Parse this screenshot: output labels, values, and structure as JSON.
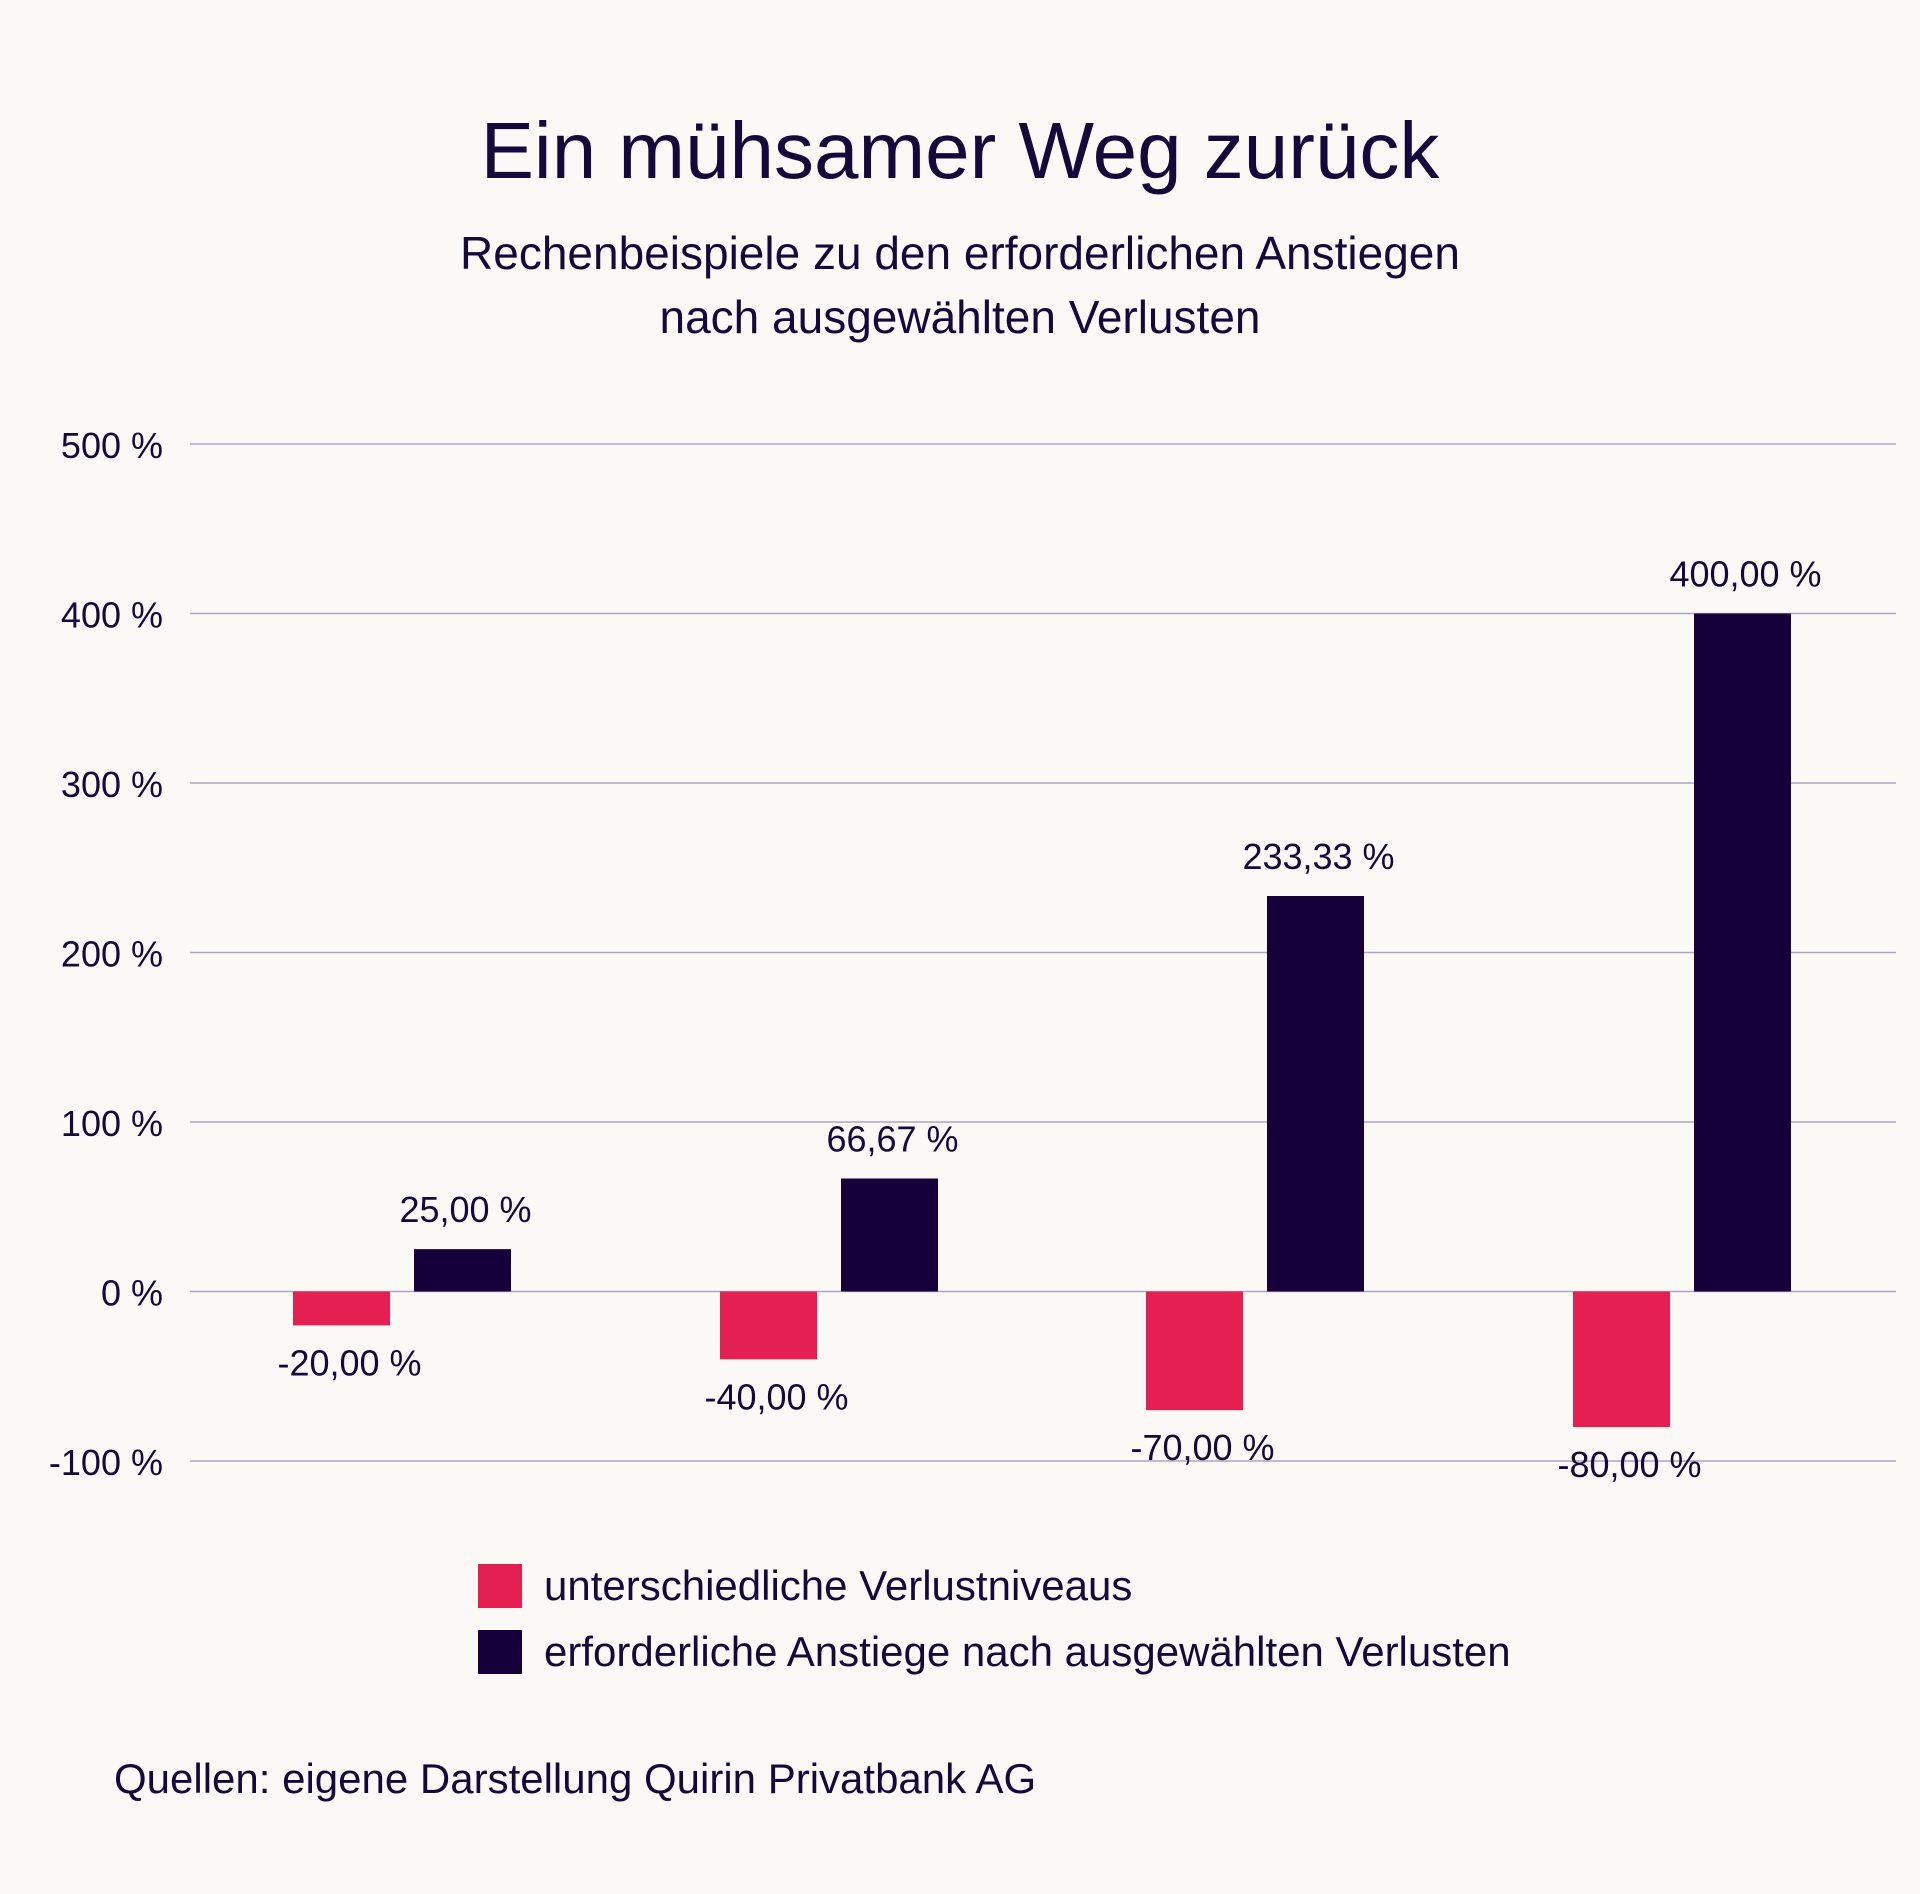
{
  "title": "Ein mühsamer Weg zurück",
  "subtitle": {
    "line1": "Rechenbeispiele zu den erforderlichen Anstiegen",
    "line2": "nach ausgewählten Verlusten"
  },
  "colors": {
    "background": "#fcf8f6",
    "text": "#15093c",
    "loss": "#e41f52",
    "gain": "#15003a",
    "grid": "#a9a6c3"
  },
  "chart_data": {
    "type": "bar",
    "title": "Ein mühsamer Weg zurück",
    "categories": [
      "",
      "",
      "",
      ""
    ],
    "series": [
      {
        "name": "unterschiedliche Verlustniveaus",
        "values": [
          -20,
          -40,
          -70,
          -80
        ],
        "labels": [
          "-20,00 %",
          "-40,00 %",
          "-70,00 %",
          "-80,00 %"
        ]
      },
      {
        "name": "erforderliche Anstiege nach ausgewählten Verlusten",
        "values": [
          25,
          66.67,
          233.33,
          400
        ],
        "labels": [
          "25,00 %",
          "66,67 %",
          "233,33 %",
          "400,00 %"
        ]
      }
    ],
    "ylim": [
      -100,
      500
    ],
    "yticks": [
      500,
      400,
      300,
      200,
      100,
      0,
      -100
    ],
    "ytick_labels": [
      "500 %",
      "400 %",
      "300 %",
      "200 %",
      "100 %",
      "0 %",
      "-100 %"
    ],
    "grid": true,
    "legend_position": "bottom"
  },
  "legend": {
    "loss_label": "unterschiedliche Verlustniveaus",
    "gain_label": "erforderliche Anstiege nach ausgewählten Verlusten"
  },
  "source": "Quellen: eigene Darstellung Quirin Privatbank AG"
}
